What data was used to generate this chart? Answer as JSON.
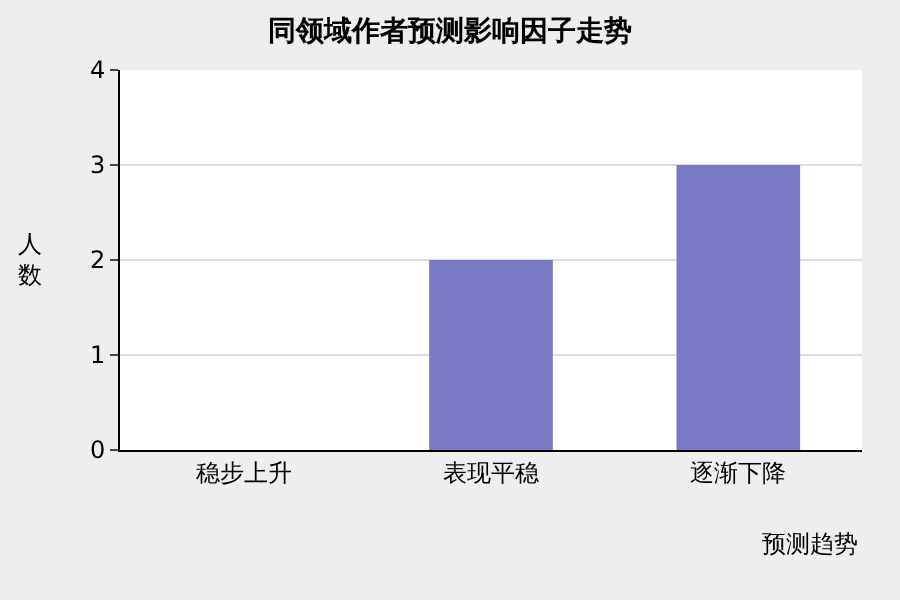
{
  "chart_data": {
    "type": "bar",
    "title": "同领域作者预测影响因子走势",
    "xlabel": "预测趋势",
    "ylabel": "人数",
    "categories": [
      "稳步上升",
      "表现平稳",
      "逐渐下降"
    ],
    "values": [
      0,
      2,
      3
    ],
    "color": "#7a7ac4",
    "ylim": [
      0,
      4
    ],
    "yticks": [
      0,
      1,
      2,
      3,
      4
    ],
    "grid": "y"
  }
}
